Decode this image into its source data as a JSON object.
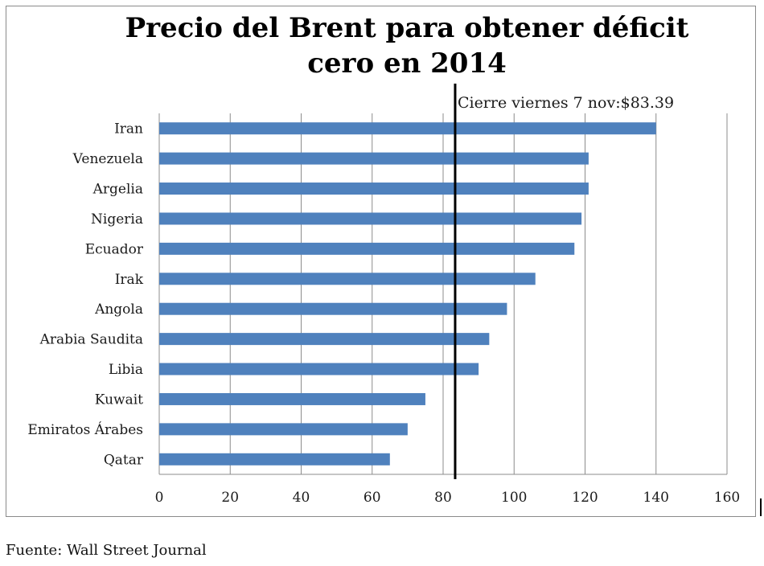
{
  "chart_data": {
    "type": "bar",
    "orientation": "horizontal",
    "title_lines": [
      "Precio del Brent para obtener déficit",
      "cero en 2014"
    ],
    "categories": [
      "Iran",
      "Venezuela",
      "Argelia",
      "Nigeria",
      "Ecuador",
      "Irak",
      "Angola",
      "Arabia Saudita",
      "Libia",
      "Kuwait",
      "Emiratos Árabes",
      "Qatar"
    ],
    "values": [
      140,
      121,
      121,
      119,
      117,
      106,
      98,
      93,
      90,
      75,
      70,
      65
    ],
    "xlim": [
      0,
      160
    ],
    "xticks": [
      0,
      20,
      40,
      60,
      80,
      100,
      120,
      140,
      160
    ],
    "xlabel": "",
    "ylabel": "",
    "grid": "vertical",
    "bar_color": "#4f81bd",
    "reference_line": {
      "value": 83.39,
      "label": "Cierre viernes 7 nov:$83.39",
      "color": "#000000"
    }
  },
  "source": "Fuente: Wall Street Journal"
}
